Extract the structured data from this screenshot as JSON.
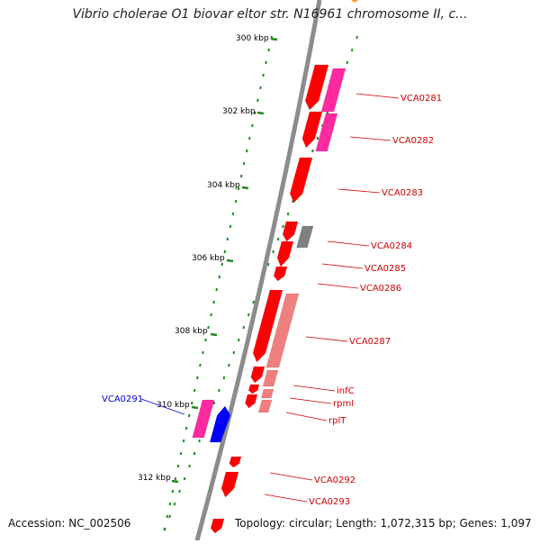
{
  "title": "Vibrio cholerae O1 biovar eltor str. N16961 chromosome II, c...",
  "footer": {
    "accession": "Accession: NC_002506",
    "stats": "Topology: circular; Length: 1,072,315 bp; Genes: 1,097"
  },
  "colors": {
    "backbone": "#8c8c8c",
    "tick": "#1f8a1f",
    "gene_red": "#ff0000",
    "gene_pink": "#ff2aa0",
    "gene_light": "#f08080",
    "gene_gray": "#808080",
    "gene_blue": "#0000ff",
    "label_red": "#cc0000",
    "label_blue": "#0000cc"
  },
  "kbp_ticks": [
    "300 kbp",
    "302 kbp",
    "304 kbp",
    "306 kbp",
    "308 kbp",
    "310 kbp",
    "312 kbp"
  ],
  "gene_labels": [
    {
      "text": "VCA0281",
      "strand": "forward"
    },
    {
      "text": "VCA0282",
      "strand": "forward"
    },
    {
      "text": "VCA0283",
      "strand": "forward"
    },
    {
      "text": "VCA0284",
      "strand": "forward"
    },
    {
      "text": "VCA0285",
      "strand": "forward"
    },
    {
      "text": "VCA0286",
      "strand": "forward"
    },
    {
      "text": "VCA0287",
      "strand": "forward"
    },
    {
      "text": "infC",
      "strand": "forward"
    },
    {
      "text": "rpmI",
      "strand": "forward"
    },
    {
      "text": "rplT",
      "strand": "forward"
    },
    {
      "text": "VCA0291",
      "strand": "reverse"
    },
    {
      "text": "VCA0292",
      "strand": "forward"
    },
    {
      "text": "VCA0293",
      "strand": "forward"
    }
  ]
}
